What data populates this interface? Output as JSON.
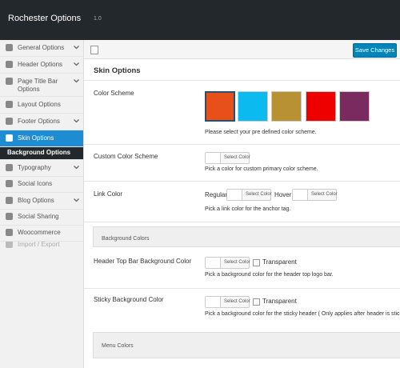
{
  "header": {
    "title": "Rochester Options",
    "version": "1.0"
  },
  "toolbar": {
    "save_button": "Save Changes"
  },
  "sidebar": {
    "items": [
      "General Options",
      "Header Options",
      "Page Title Bar Options",
      "Layout Options",
      "Footer Options",
      "Skin Options",
      "Background Options",
      "Typography",
      "Social Icons",
      "Blog Options",
      "Social Sharing",
      "Woocommerce",
      "Import / Export"
    ]
  },
  "section": {
    "title": "Skin Options"
  },
  "fields": [
    {
      "label": "Color Scheme",
      "swatches": [
        "#e8501a",
        "#0bbbef",
        "#b89232",
        "#ee0000",
        "#7a2a5e"
      ],
      "description": "Please select your pre defined color scheme."
    },
    {
      "label": "Custom Color Scheme",
      "button": "Select Color",
      "description": "Pick a color for custom primary color scheme."
    },
    {
      "label": "Link Color",
      "regular_label": "Regular",
      "regular_button": "Select Color",
      "hover_label": "Hover",
      "hover_button": "Select Color",
      "description": "Pick a link color for the anchor tag."
    }
  ],
  "groups": [
    {
      "title": "Background Colors",
      "fields": [
        {
          "label": "Header Top Bar Background Color",
          "button": "Select Color",
          "checkbox": "Transparent",
          "description": "Pick a background color for the header top logo bar."
        },
        {
          "label": "Sticky Background Color",
          "button": "Select Color",
          "checkbox": "Transparent",
          "description": "Pick a background color for the sticky header ( Only applies after header is sticky"
        }
      ]
    },
    {
      "title": "Menu Colors"
    }
  ]
}
